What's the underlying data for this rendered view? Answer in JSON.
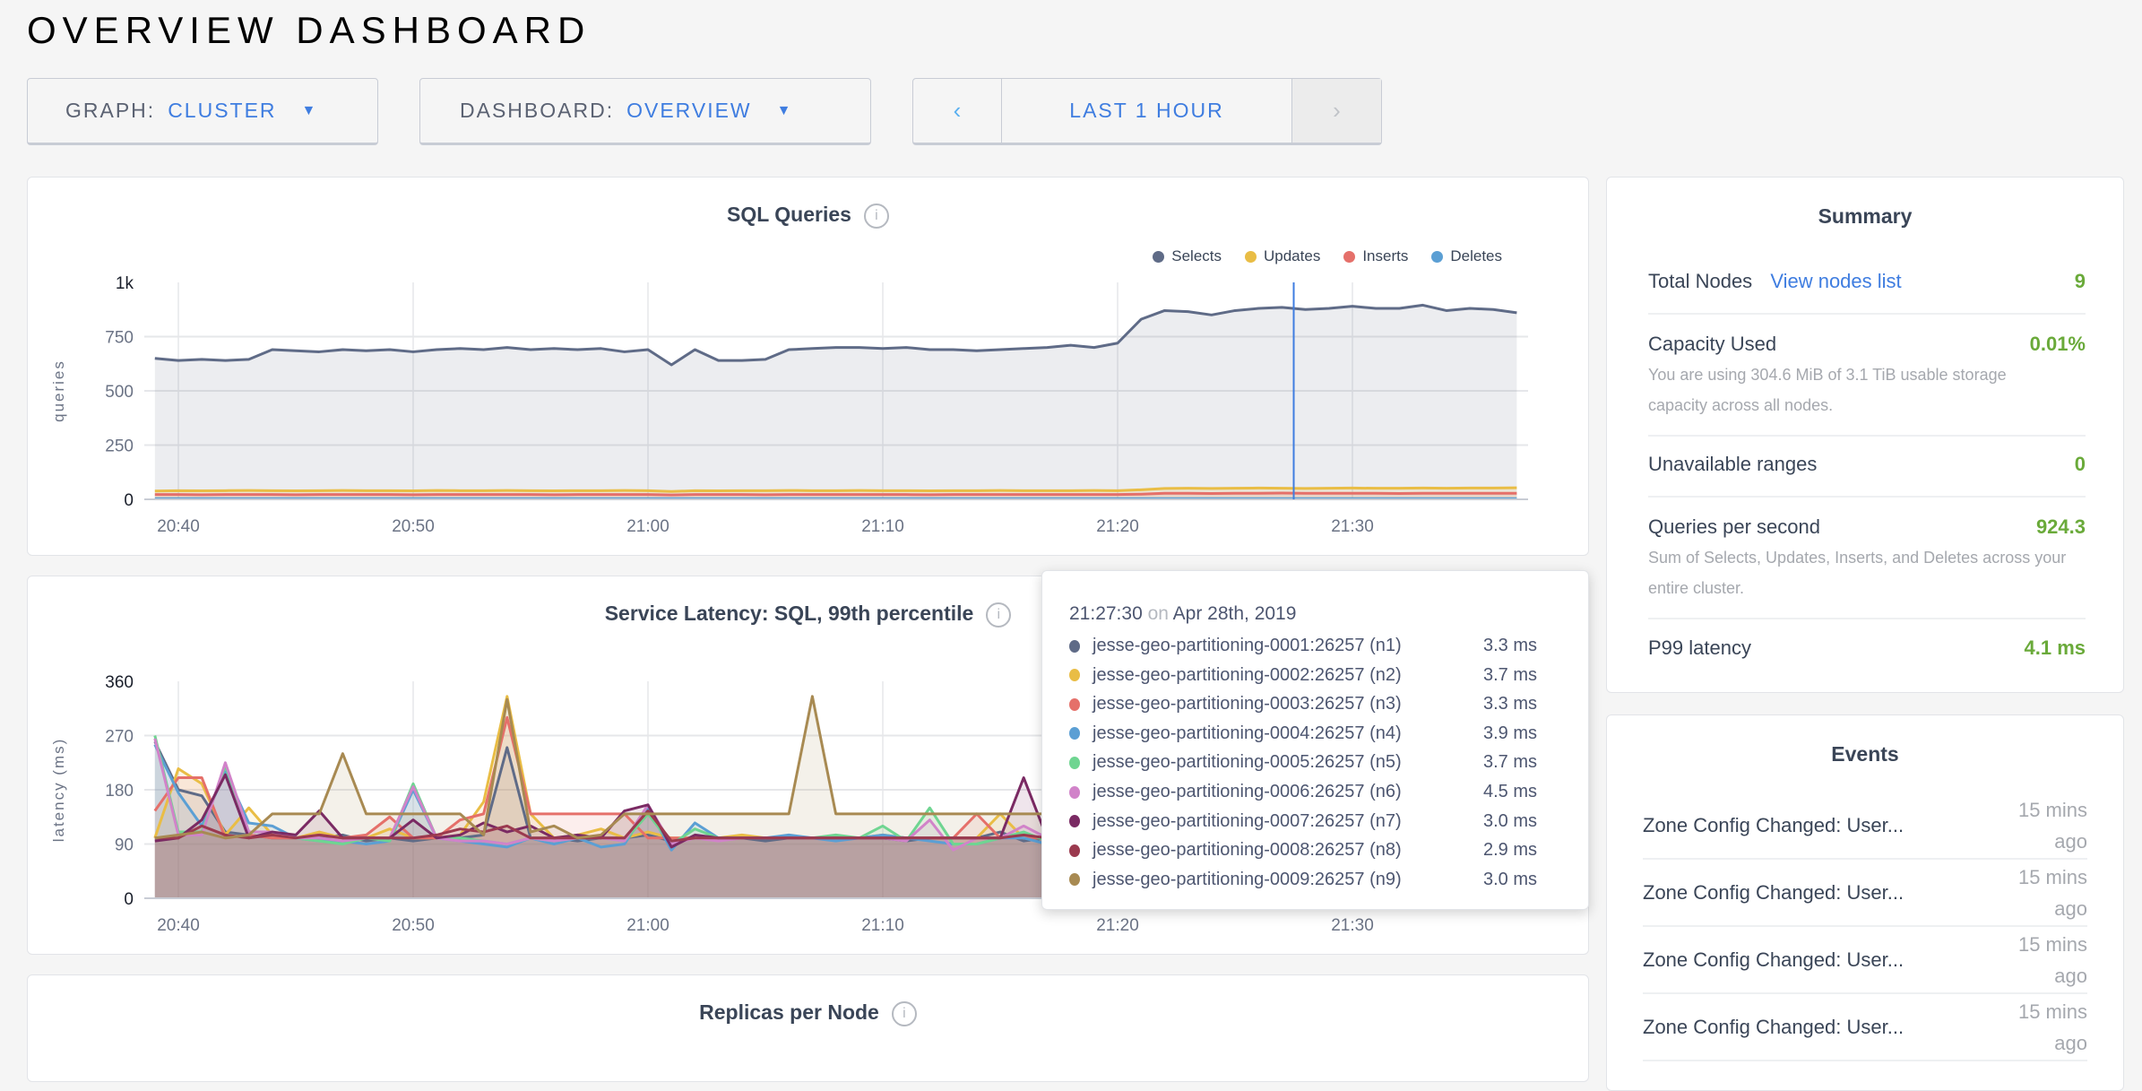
{
  "page_title": "OVERVIEW DASHBOARD",
  "controls": {
    "graph_label": "GRAPH:",
    "graph_value": "CLUSTER",
    "dashboard_label": "DASHBOARD:",
    "dashboard_value": "OVERVIEW",
    "time_range": "LAST 1 HOUR",
    "prev_icon": "chevron-left-icon",
    "next_icon": "chevron-right-icon"
  },
  "summary": {
    "title": "Summary",
    "total_nodes_label": "Total Nodes",
    "view_nodes_link": "View nodes list",
    "total_nodes": "9",
    "capacity_label": "Capacity Used",
    "capacity_value": "0.01%",
    "capacity_desc": "You are using 304.6 MiB of 3.1 TiB usable storage capacity across all nodes.",
    "unavailable_label": "Unavailable ranges",
    "unavailable_value": "0",
    "qps_label": "Queries per second",
    "qps_value": "924.3",
    "qps_desc": "Sum of Selects, Updates, Inserts, and Deletes across your entire cluster.",
    "p99_label": "P99 latency",
    "p99_value": "4.1 ms"
  },
  "events": {
    "title": "Events",
    "items": [
      {
        "text": "Zone Config Changed: User...",
        "time": "15 mins ago"
      },
      {
        "text": "Zone Config Changed: User...",
        "time": "15 mins ago"
      },
      {
        "text": "Zone Config Changed: User...",
        "time": "15 mins ago"
      },
      {
        "text": "Zone Config Changed: User...",
        "time": "15 mins ago"
      }
    ]
  },
  "replicas_panel": {
    "title": "Replicas per Node"
  },
  "tooltip": {
    "time": "21:27:30",
    "on": "on",
    "date": "Apr 28th, 2019",
    "rows": [
      {
        "name": "jesse-geo-partitioning-0001:26257 (n1)",
        "value": "3.3 ms",
        "color": "#5f6b87"
      },
      {
        "name": "jesse-geo-partitioning-0002:26257 (n2)",
        "value": "3.7 ms",
        "color": "#e9bd45"
      },
      {
        "name": "jesse-geo-partitioning-0003:26257 (n3)",
        "value": "3.3 ms",
        "color": "#e5706a"
      },
      {
        "name": "jesse-geo-partitioning-0004:26257 (n4)",
        "value": "3.9 ms",
        "color": "#5b9fd4"
      },
      {
        "name": "jesse-geo-partitioning-0005:26257 (n5)",
        "value": "3.7 ms",
        "color": "#6fd591"
      },
      {
        "name": "jesse-geo-partitioning-0006:26257 (n6)",
        "value": "4.5 ms",
        "color": "#d183c9"
      },
      {
        "name": "jesse-geo-partitioning-0007:26257 (n7)",
        "value": "3.0 ms",
        "color": "#7a2a63"
      },
      {
        "name": "jesse-geo-partitioning-0008:26257 (n8)",
        "value": "2.9 ms",
        "color": "#9b3a4f"
      },
      {
        "name": "jesse-geo-partitioning-0009:26257 (n9)",
        "value": "3.0 ms",
        "color": "#a88a52"
      }
    ]
  },
  "chart_data": [
    {
      "type": "area",
      "title": "SQL Queries",
      "ylabel": "queries",
      "ylim": [
        0,
        1000
      ],
      "yticks": [
        "0",
        "250",
        "500",
        "750",
        "1k"
      ],
      "ytick_values": [
        0,
        250,
        500,
        750,
        1000
      ],
      "xticks": [
        "20:40",
        "20:50",
        "21:00",
        "21:10",
        "21:20",
        "21:30"
      ],
      "cursor": "21:27:30",
      "grid": true,
      "legend": "top-right",
      "x": [
        "20:39",
        "20:40",
        "20:41",
        "20:42",
        "20:43",
        "20:44",
        "20:45",
        "20:46",
        "20:47",
        "20:48",
        "20:49",
        "20:50",
        "20:51",
        "20:52",
        "20:53",
        "20:54",
        "20:55",
        "20:56",
        "20:57",
        "20:58",
        "20:59",
        "21:00",
        "21:01",
        "21:02",
        "21:03",
        "21:04",
        "21:05",
        "21:06",
        "21:07",
        "21:08",
        "21:09",
        "21:10",
        "21:11",
        "21:12",
        "21:13",
        "21:14",
        "21:15",
        "21:16",
        "21:17",
        "21:18",
        "21:19",
        "21:20",
        "21:21",
        "21:22",
        "21:23",
        "21:24",
        "21:25",
        "21:26",
        "21:27",
        "21:28",
        "21:29",
        "21:30",
        "21:31",
        "21:32",
        "21:33",
        "21:34",
        "21:35",
        "21:36",
        "21:37"
      ],
      "series": [
        {
          "name": "Selects",
          "color": "#5f6b87",
          "values": [
            650,
            640,
            645,
            640,
            645,
            690,
            685,
            680,
            690,
            685,
            690,
            680,
            690,
            695,
            690,
            700,
            690,
            695,
            690,
            695,
            680,
            690,
            620,
            690,
            640,
            640,
            645,
            690,
            695,
            700,
            700,
            695,
            700,
            690,
            690,
            685,
            690,
            695,
            700,
            710,
            700,
            720,
            830,
            870,
            865,
            850,
            870,
            880,
            885,
            875,
            880,
            890,
            880,
            880,
            895,
            870,
            880,
            875,
            860
          ]
        },
        {
          "name": "Updates",
          "color": "#e9bd45",
          "values": [
            38,
            40,
            39,
            40,
            41,
            40,
            39,
            40,
            41,
            40,
            40,
            39,
            41,
            40,
            40,
            41,
            40,
            39,
            40,
            40,
            41,
            40,
            36,
            40,
            39,
            40,
            40,
            41,
            40,
            40,
            41,
            40,
            40,
            39,
            40,
            40,
            41,
            40,
            40,
            40,
            41,
            40,
            44,
            50,
            51,
            50,
            51,
            52,
            51,
            50,
            51,
            52,
            51,
            51,
            52,
            51,
            52,
            52,
            53
          ]
        },
        {
          "name": "Inserts",
          "color": "#e5706a",
          "values": [
            22,
            22,
            21,
            22,
            22,
            22,
            21,
            22,
            22,
            22,
            22,
            21,
            22,
            22,
            22,
            22,
            22,
            21,
            22,
            22,
            22,
            22,
            20,
            22,
            22,
            22,
            21,
            22,
            22,
            22,
            22,
            22,
            22,
            21,
            22,
            22,
            22,
            22,
            22,
            22,
            22,
            22,
            24,
            28,
            28,
            27,
            28,
            28,
            29,
            28,
            28,
            28,
            28,
            27,
            28,
            28,
            28,
            28,
            28
          ]
        },
        {
          "name": "Deletes",
          "color": "#5b9fd4",
          "values": [
            3,
            3,
            3,
            3,
            3,
            3,
            3,
            3,
            3,
            3,
            3,
            3,
            3,
            3,
            3,
            3,
            3,
            3,
            3,
            3,
            3,
            3,
            3,
            3,
            3,
            3,
            3,
            3,
            3,
            3,
            3,
            3,
            3,
            3,
            3,
            3,
            3,
            3,
            3,
            3,
            3,
            3,
            3,
            3,
            3,
            3,
            3,
            3,
            3,
            3,
            3,
            3,
            3,
            3,
            3,
            3,
            3,
            3,
            3
          ]
        }
      ]
    },
    {
      "type": "line",
      "title": "Service Latency: SQL, 99th percentile",
      "ylabel": "latency (ms)",
      "ylim": [
        0,
        360
      ],
      "yticks": [
        "0",
        "90",
        "180",
        "270",
        "360"
      ],
      "ytick_values": [
        0,
        90,
        180,
        270,
        360
      ],
      "xticks": [
        "20:40",
        "20:50",
        "21:00",
        "21:10",
        "21:20",
        "21:30"
      ],
      "cursor": "21:27:30",
      "grid": true,
      "series": [
        {
          "name": "n1",
          "color": "#5f6b87",
          "values": [
            260,
            180,
            170,
            110,
            105,
            100,
            100,
            100,
            105,
            95,
            100,
            95,
            100,
            100,
            105,
            250,
            100,
            100,
            95,
            100,
            100,
            105,
            95,
            100,
            100,
            100,
            95,
            100,
            100,
            100,
            100,
            100,
            95,
            100,
            100,
            100,
            110,
            95,
            100,
            100,
            95,
            100,
            100,
            110,
            30,
            3,
            3,
            3,
            3.3,
            3,
            3,
            3,
            3,
            3,
            3,
            3,
            3,
            3,
            3
          ]
        },
        {
          "name": "n2",
          "color": "#e9bd45",
          "values": [
            100,
            215,
            190,
            105,
            150,
            105,
            100,
            110,
            100,
            100,
            115,
            100,
            100,
            105,
            160,
            335,
            140,
            100,
            105,
            115,
            100,
            110,
            100,
            100,
            100,
            105,
            100,
            100,
            100,
            100,
            100,
            105,
            100,
            100,
            100,
            100,
            140,
            100,
            100,
            100,
            100,
            105,
            100,
            110,
            35,
            3,
            3,
            4,
            3.7,
            5,
            3,
            3,
            3,
            3,
            3,
            3,
            3,
            3,
            3
          ]
        },
        {
          "name": "n3",
          "color": "#e5706a",
          "values": [
            145,
            200,
            200,
            100,
            105,
            100,
            100,
            105,
            100,
            105,
            135,
            100,
            100,
            130,
            140,
            300,
            140,
            140,
            140,
            140,
            140,
            100,
            100,
            100,
            100,
            100,
            100,
            100,
            100,
            100,
            100,
            100,
            100,
            100,
            100,
            140,
            100,
            100,
            100,
            100,
            100,
            100,
            100,
            100,
            45,
            4,
            3,
            3,
            3.3,
            3,
            3,
            3,
            3,
            3,
            3,
            3,
            3,
            3,
            3
          ]
        },
        {
          "name": "n4",
          "color": "#5b9fd4",
          "values": [
            255,
            175,
            120,
            210,
            125,
            120,
            100,
            95,
            95,
            90,
            95,
            180,
            100,
            95,
            90,
            85,
            100,
            90,
            100,
            85,
            90,
            150,
            80,
            125,
            100,
            100,
            100,
            105,
            100,
            95,
            100,
            105,
            100,
            95,
            90,
            90,
            100,
            100,
            90,
            95,
            90,
            85,
            95,
            100,
            30,
            3,
            3,
            3,
            3.9,
            3,
            3,
            3,
            3,
            3,
            3,
            3,
            3,
            3,
            3
          ]
        },
        {
          "name": "n5",
          "color": "#6fd591",
          "values": [
            270,
            110,
            110,
            220,
            110,
            110,
            100,
            95,
            90,
            100,
            95,
            190,
            100,
            100,
            95,
            90,
            100,
            95,
            100,
            100,
            95,
            140,
            90,
            115,
            100,
            100,
            100,
            100,
            100,
            105,
            100,
            120,
            95,
            150,
            90,
            90,
            100,
            110,
            95,
            100,
            95,
            100,
            95,
            100,
            30,
            3,
            3,
            3,
            3.7,
            3,
            3,
            3,
            3,
            3,
            3,
            3,
            3,
            3,
            3
          ]
        },
        {
          "name": "n6",
          "color": "#d183c9",
          "values": [
            265,
            105,
            105,
            225,
            110,
            110,
            100,
            100,
            95,
            100,
            100,
            185,
            100,
            95,
            95,
            90,
            100,
            95,
            100,
            100,
            95,
            155,
            90,
            100,
            95,
            100,
            100,
            100,
            100,
            100,
            100,
            100,
            95,
            130,
            80,
            100,
            100,
            120,
            100,
            95,
            100,
            95,
            95,
            100,
            30,
            3,
            3,
            3,
            4.5,
            3,
            3,
            3,
            3,
            3,
            3,
            3,
            3,
            3,
            3
          ]
        },
        {
          "name": "n7",
          "color": "#7a2a63",
          "values": [
            95,
            100,
            130,
            205,
            100,
            110,
            105,
            145,
            100,
            100,
            100,
            130,
            100,
            105,
            125,
            110,
            120,
            100,
            105,
            100,
            145,
            155,
            85,
            105,
            100,
            100,
            100,
            100,
            100,
            100,
            100,
            100,
            100,
            100,
            100,
            100,
            100,
            200,
            100,
            100,
            95,
            100,
            110,
            100,
            35,
            3,
            3,
            3,
            3.0,
            3,
            3,
            3,
            3,
            3,
            3,
            3,
            3,
            3,
            3
          ]
        },
        {
          "name": "n8",
          "color": "#9b3a4f",
          "values": [
            100,
            100,
            120,
            105,
            100,
            105,
            100,
            105,
            100,
            100,
            100,
            100,
            105,
            115,
            110,
            120,
            100,
            100,
            100,
            100,
            100,
            145,
            95,
            100,
            100,
            100,
            100,
            100,
            100,
            100,
            100,
            100,
            100,
            100,
            100,
            100,
            100,
            105,
            100,
            100,
            100,
            100,
            100,
            100,
            35,
            3,
            3,
            3,
            2.9,
            3,
            3,
            3,
            3,
            3,
            3,
            3,
            3,
            3,
            3
          ]
        },
        {
          "name": "n9",
          "color": "#a88a52",
          "values": [
            100,
            105,
            110,
            100,
            105,
            140,
            140,
            140,
            240,
            140,
            140,
            140,
            140,
            140,
            105,
            330,
            110,
            120,
            100,
            105,
            140,
            140,
            140,
            140,
            140,
            140,
            140,
            140,
            335,
            140,
            140,
            140,
            140,
            140,
            140,
            140,
            140,
            140,
            140,
            140,
            140,
            140,
            140,
            140,
            30,
            3,
            3,
            3,
            3.0,
            3,
            3,
            3,
            3,
            3,
            3,
            3,
            3,
            3,
            3
          ]
        }
      ]
    }
  ]
}
